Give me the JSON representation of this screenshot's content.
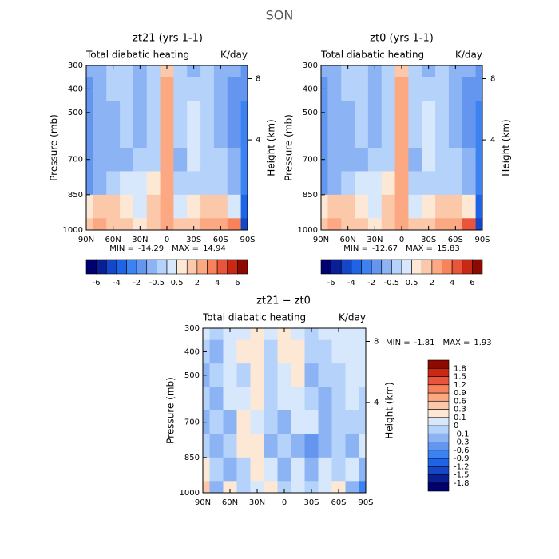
{
  "title": "SON",
  "chart_data": [
    {
      "type": "contour",
      "title": "zt21 (yrs 1-1)",
      "subtitle": "Total diabatic heating",
      "units": "K/day",
      "ylabel": "Pressure (mb)",
      "y2label": "Height (km)",
      "min_label": "MIN =",
      "min": -14.29,
      "max_label": "MAX =",
      "max": 14.94,
      "xlim": [
        90,
        -90
      ],
      "xticks": [
        {
          "value": 90,
          "label": "90N"
        },
        {
          "value": 60,
          "label": "60N"
        },
        {
          "value": 30,
          "label": "30N"
        },
        0,
        {
          "value": -30,
          "label": "30S"
        },
        {
          "value": -60,
          "label": "60S"
        },
        {
          "value": -90,
          "label": "90S"
        }
      ],
      "ylim": [
        1000,
        300
      ],
      "yticks": [
        300,
        400,
        500,
        700,
        850,
        1000
      ],
      "y2ticks": [
        8,
        4
      ],
      "levels": [
        -6,
        -5,
        -4,
        -3,
        -2,
        -1,
        -0.5,
        0,
        0.5,
        1,
        2,
        3,
        4,
        5,
        6
      ],
      "colorbar_ticks": [
        -6,
        -4,
        -2,
        -0.5,
        0.5,
        2,
        4,
        6
      ],
      "colorbar": "horizontal",
      "colors": [
        "#00006e",
        "#0a1e96",
        "#1446c8",
        "#1e64e6",
        "#3c82f0",
        "#6496f0",
        "#8cb4f5",
        "#b4d2fa",
        "#d7e8fc",
        "#fde8d6",
        "#fcc8aa",
        "#fca882",
        "#f8825a",
        "#e8553c",
        "#c82814",
        "#8c0a00"
      ],
      "x": [
        90,
        75,
        60,
        45,
        30,
        15,
        0,
        -15,
        -30,
        -45,
        -60,
        -75,
        -90
      ],
      "y": [
        300,
        400,
        500,
        600,
        700,
        800,
        900,
        1000
      ],
      "z": [
        [
          -1,
          -0.7,
          -0.3,
          -0.3,
          -0.7,
          -0.3,
          1.5,
          -0.3,
          -0.7,
          -0.3,
          -0.7,
          -1,
          -1.5
        ],
        [
          -1.5,
          -0.7,
          -0.3,
          -0.3,
          -1,
          -0.3,
          2.5,
          -0.3,
          -0.3,
          -0.3,
          -0.7,
          -1.5,
          -2
        ],
        [
          -1.5,
          -1,
          -0.7,
          -0.3,
          -1,
          -0.3,
          2.5,
          -0.3,
          0.3,
          -0.3,
          -0.7,
          -1.5,
          -3
        ],
        [
          -1.5,
          -1,
          -0.7,
          -0.3,
          -0.7,
          -0.3,
          2.5,
          -0.3,
          0.3,
          -0.3,
          -0.7,
          -1.5,
          -3
        ],
        [
          -1.5,
          -1,
          -0.7,
          -0.7,
          -0.3,
          -0.3,
          2.5,
          -0.7,
          0.3,
          -0.3,
          -0.3,
          -1,
          -3
        ],
        [
          -1.5,
          -1,
          -0.3,
          0.3,
          0.3,
          0.7,
          2.5,
          -0.3,
          -0.3,
          -0.3,
          -0.3,
          -1,
          -3
        ],
        [
          0.7,
          1.5,
          1.5,
          0.7,
          0.3,
          1.5,
          2,
          0.3,
          0.7,
          1.5,
          1.5,
          0.3,
          -4
        ],
        [
          1.5,
          2.5,
          1.5,
          1.5,
          0.7,
          1.5,
          2,
          1.5,
          1.5,
          2.5,
          2.5,
          3.5,
          -5
        ]
      ]
    },
    {
      "type": "contour",
      "title": "zt0 (yrs 1-1)",
      "subtitle": "Total diabatic heating",
      "units": "K/day",
      "ylabel": "Pressure (mb)",
      "y2label": "Height (km)",
      "min_label": "MIN =",
      "min": -12.67,
      "max_label": "MAX =",
      "max": 15.83,
      "xlim": [
        90,
        -90
      ],
      "xticks": [
        {
          "value": 90,
          "label": "90N"
        },
        {
          "value": 60,
          "label": "60N"
        },
        {
          "value": 30,
          "label": "30N"
        },
        0,
        {
          "value": -30,
          "label": "30S"
        },
        {
          "value": -60,
          "label": "60S"
        },
        {
          "value": -90,
          "label": "90S"
        }
      ],
      "ylim": [
        1000,
        300
      ],
      "yticks": [
        300,
        400,
        500,
        700,
        850,
        1000
      ],
      "y2ticks": [
        8,
        4
      ],
      "levels": [
        -6,
        -5,
        -4,
        -3,
        -2,
        -1,
        -0.5,
        0,
        0.5,
        1,
        2,
        3,
        4,
        5,
        6
      ],
      "colorbar_ticks": [
        -6,
        -4,
        -2,
        -0.5,
        0.5,
        2,
        4,
        6
      ],
      "colorbar": "horizontal",
      "colors": [
        "#00006e",
        "#0a1e96",
        "#1446c8",
        "#1e64e6",
        "#3c82f0",
        "#6496f0",
        "#8cb4f5",
        "#b4d2fa",
        "#d7e8fc",
        "#fde8d6",
        "#fcc8aa",
        "#fca882",
        "#f8825a",
        "#e8553c",
        "#c82814",
        "#8c0a00"
      ],
      "x": [
        90,
        75,
        60,
        45,
        30,
        15,
        0,
        -15,
        -30,
        -45,
        -60,
        -75,
        -90
      ],
      "y": [
        300,
        400,
        500,
        600,
        700,
        800,
        900,
        1000
      ],
      "z": [
        [
          -1,
          -0.7,
          -0.3,
          -0.3,
          -0.7,
          -0.3,
          1.5,
          -0.3,
          -0.7,
          -0.3,
          -0.7,
          -1,
          -1.5
        ],
        [
          -1.5,
          -0.7,
          -0.3,
          -0.3,
          -0.7,
          -0.3,
          2.5,
          -0.3,
          -0.3,
          -0.3,
          -0.7,
          -1.5,
          -2
        ],
        [
          -1.5,
          -1,
          -0.7,
          -0.3,
          -0.7,
          -0.3,
          2.5,
          -0.3,
          0.3,
          -0.3,
          -0.7,
          -1.5,
          -3
        ],
        [
          -1.5,
          -1,
          -0.7,
          -0.3,
          -0.7,
          -0.3,
          2.5,
          -0.3,
          0.3,
          -0.3,
          -0.7,
          -1.5,
          -3
        ],
        [
          -1.5,
          -1,
          -0.7,
          -0.7,
          -0.3,
          -0.3,
          2.5,
          -0.7,
          0.3,
          -0.3,
          -0.3,
          -1,
          -3
        ],
        [
          -1.5,
          -0.7,
          -0.3,
          0.3,
          0.3,
          0.7,
          2.5,
          -0.3,
          -0.3,
          -0.3,
          -0.3,
          -1,
          -3
        ],
        [
          0.7,
          1.5,
          1.5,
          0.7,
          0.3,
          1.5,
          2,
          0.3,
          0.7,
          1.5,
          1.5,
          0.7,
          -4
        ],
        [
          1.5,
          2.5,
          1.5,
          1.5,
          0.7,
          1.5,
          2,
          1.5,
          1.5,
          2.5,
          2.5,
          4.5,
          -5
        ]
      ]
    },
    {
      "type": "contour",
      "title": "zt21 − zt0",
      "subtitle": "Total diabatic heating",
      "units": "K/day",
      "ylabel": "Pressure (mb)",
      "y2label": "Height (km)",
      "min_label": "MIN =",
      "min": -1.81,
      "max_label": "MAX =",
      "max": 1.93,
      "xlim": [
        90,
        -90
      ],
      "xticks": [
        {
          "value": 90,
          "label": "90N"
        },
        {
          "value": 60,
          "label": "60N"
        },
        {
          "value": 30,
          "label": "30N"
        },
        0,
        {
          "value": -30,
          "label": "30S"
        },
        {
          "value": -60,
          "label": "60S"
        },
        {
          "value": -90,
          "label": "90S"
        }
      ],
      "ylim": [
        1000,
        300
      ],
      "yticks": [
        300,
        400,
        500,
        700,
        850,
        1000
      ],
      "y2ticks": [
        8,
        4
      ],
      "colorbar_ticks": [
        -1.8,
        -1.5,
        -1.2,
        -0.9,
        -0.6,
        -0.3,
        -0.1,
        0,
        0.1,
        0.3,
        0.6,
        0.9,
        1.2,
        1.5,
        1.8
      ],
      "colorbar": "vertical",
      "colors": [
        "#00006e",
        "#0a1e96",
        "#1446c8",
        "#1e64e6",
        "#3c82f0",
        "#6496f0",
        "#8cb4f5",
        "#b4d2fa",
        "#d7e8fc",
        "#fde8d6",
        "#fcc8aa",
        "#fca882",
        "#f8825a",
        "#e8553c",
        "#c82814",
        "#8c0a00"
      ],
      "x": [
        90,
        75,
        60,
        45,
        30,
        15,
        0,
        -15,
        -30,
        -45,
        -60,
        -75,
        -90
      ],
      "y": [
        300,
        400,
        500,
        600,
        700,
        800,
        900,
        1000
      ],
      "z": [
        [
          0.05,
          -0.05,
          0.05,
          0.05,
          0.2,
          0.05,
          0.2,
          0.05,
          -0.05,
          0.05,
          0.05,
          0.05,
          0.05
        ],
        [
          -0.05,
          -0.2,
          0.05,
          0.2,
          0.2,
          -0.05,
          0.2,
          0.2,
          -0.05,
          -0.05,
          0.05,
          0.05,
          0.05
        ],
        [
          -0.2,
          -0.05,
          0.05,
          -0.05,
          0.2,
          -0.05,
          0.05,
          0.2,
          -0.2,
          -0.05,
          -0.05,
          0.05,
          0.05
        ],
        [
          -0.05,
          -0.2,
          0.05,
          0.05,
          0.2,
          -0.05,
          0.05,
          0.05,
          -0.05,
          -0.2,
          -0.05,
          0.05,
          -0.05
        ],
        [
          -0.2,
          -0.05,
          -0.2,
          0.2,
          0.05,
          -0.05,
          -0.2,
          0.05,
          0.05,
          -0.2,
          -0.05,
          -0.05,
          -0.05
        ],
        [
          -0.05,
          -0.2,
          -0.05,
          0.2,
          0.2,
          -0.2,
          -0.05,
          -0.2,
          -0.4,
          -0.2,
          -0.05,
          -0.2,
          0.05
        ],
        [
          0.2,
          -0.05,
          -0.2,
          -0.05,
          0.2,
          0.05,
          -0.2,
          0.05,
          -0.2,
          0.05,
          -0.05,
          0.05,
          -0.2
        ],
        [
          0.4,
          -0.2,
          0.2,
          -0.05,
          0.05,
          0.2,
          -0.05,
          0.05,
          -0.05,
          0.05,
          0.2,
          -0.2,
          -0.7
        ]
      ]
    }
  ]
}
